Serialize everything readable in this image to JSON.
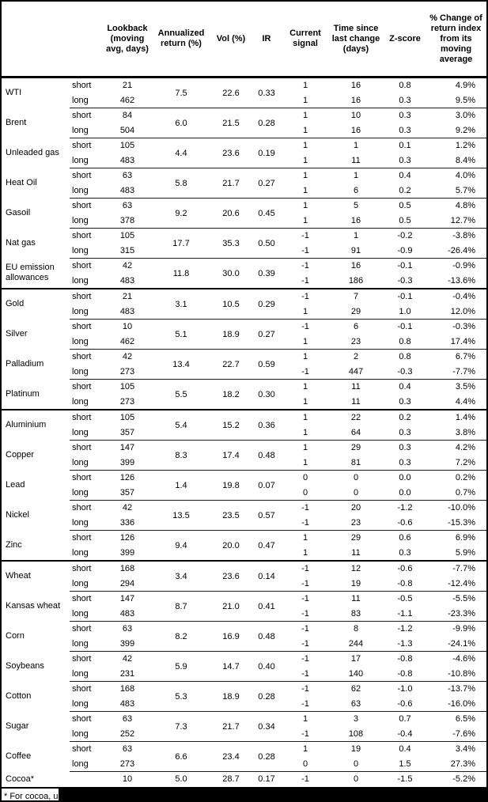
{
  "header": {
    "columns": [
      "",
      "",
      "Lookback (moving avg, days)",
      "Annualized return (%)",
      "Vol (%)",
      "IR",
      "Current signal",
      "Time since last change (days)",
      "Z-score",
      "% Change of return index from its moving average"
    ]
  },
  "groups": [
    {
      "commodities": [
        {
          "name": "WTI",
          "annualized_return": "7.5",
          "vol": "22.6",
          "ir": "0.33",
          "rows": [
            {
              "leg": "short",
              "lookback": "21",
              "signal": "1",
              "time_since": "16",
              "z_score": "0.8",
              "pct_change": "4.9%"
            },
            {
              "leg": "long",
              "lookback": "462",
              "signal": "1",
              "time_since": "16",
              "z_score": "0.3",
              "pct_change": "9.5%"
            }
          ]
        },
        {
          "name": "Brent",
          "annualized_return": "6.0",
          "vol": "21.5",
          "ir": "0.28",
          "rows": [
            {
              "leg": "short",
              "lookback": "84",
              "signal": "1",
              "time_since": "10",
              "z_score": "0.3",
              "pct_change": "3.0%"
            },
            {
              "leg": "long",
              "lookback": "504",
              "signal": "1",
              "time_since": "16",
              "z_score": "0.3",
              "pct_change": "9.2%"
            }
          ]
        },
        {
          "name": "Unleaded gas",
          "annualized_return": "4.4",
          "vol": "23.6",
          "ir": "0.19",
          "rows": [
            {
              "leg": "short",
              "lookback": "105",
              "signal": "1",
              "time_since": "1",
              "z_score": "0.1",
              "pct_change": "1.2%"
            },
            {
              "leg": "long",
              "lookback": "483",
              "signal": "1",
              "time_since": "11",
              "z_score": "0.3",
              "pct_change": "8.4%"
            }
          ]
        },
        {
          "name": "Heat Oil",
          "annualized_return": "5.8",
          "vol": "21.7",
          "ir": "0.27",
          "rows": [
            {
              "leg": "short",
              "lookback": "63",
              "signal": "1",
              "time_since": "1",
              "z_score": "0.4",
              "pct_change": "4.0%"
            },
            {
              "leg": "long",
              "lookback": "483",
              "signal": "1",
              "time_since": "6",
              "z_score": "0.2",
              "pct_change": "5.7%"
            }
          ]
        },
        {
          "name": "Gasoil",
          "annualized_return": "9.2",
          "vol": "20.6",
          "ir": "0.45",
          "rows": [
            {
              "leg": "short",
              "lookback": "63",
              "signal": "1",
              "time_since": "5",
              "z_score": "0.5",
              "pct_change": "4.8%"
            },
            {
              "leg": "long",
              "lookback": "378",
              "signal": "1",
              "time_since": "16",
              "z_score": "0.5",
              "pct_change": "12.7%"
            }
          ]
        },
        {
          "name": "Nat gas",
          "annualized_return": "17.7",
          "vol": "35.3",
          "ir": "0.50",
          "rows": [
            {
              "leg": "short",
              "lookback": "105",
              "signal": "-1",
              "time_since": "1",
              "z_score": "-0.2",
              "pct_change": "-3.8%"
            },
            {
              "leg": "long",
              "lookback": "315",
              "signal": "-1",
              "time_since": "91",
              "z_score": "-0.9",
              "pct_change": "-26.4%"
            }
          ]
        },
        {
          "name": "EU emission allowances",
          "annualized_return": "11.8",
          "vol": "30.0",
          "ir": "0.39",
          "rows": [
            {
              "leg": "short",
              "lookback": "42",
              "signal": "-1",
              "time_since": "16",
              "z_score": "-0.1",
              "pct_change": "-0.9%"
            },
            {
              "leg": "long",
              "lookback": "483",
              "signal": "-1",
              "time_since": "186",
              "z_score": "-0.3",
              "pct_change": "-13.6%"
            }
          ]
        }
      ]
    },
    {
      "commodities": [
        {
          "name": "Gold",
          "annualized_return": "3.1",
          "vol": "10.5",
          "ir": "0.29",
          "rows": [
            {
              "leg": "short",
              "lookback": "21",
              "signal": "-1",
              "time_since": "7",
              "z_score": "-0.1",
              "pct_change": "-0.4%"
            },
            {
              "leg": "long",
              "lookback": "483",
              "signal": "1",
              "time_since": "29",
              "z_score": "1.0",
              "pct_change": "12.0%"
            }
          ]
        },
        {
          "name": "Silver",
          "annualized_return": "5.1",
          "vol": "18.9",
          "ir": "0.27",
          "rows": [
            {
              "leg": "short",
              "lookback": "10",
              "signal": "-1",
              "time_since": "6",
              "z_score": "-0.1",
              "pct_change": "-0.3%"
            },
            {
              "leg": "long",
              "lookback": "462",
              "signal": "1",
              "time_since": "23",
              "z_score": "0.8",
              "pct_change": "17.4%"
            }
          ]
        },
        {
          "name": "Palladium",
          "annualized_return": "13.4",
          "vol": "22.7",
          "ir": "0.59",
          "rows": [
            {
              "leg": "short",
              "lookback": "42",
              "signal": "1",
              "time_since": "2",
              "z_score": "0.8",
              "pct_change": "6.7%"
            },
            {
              "leg": "long",
              "lookback": "273",
              "signal": "-1",
              "time_since": "447",
              "z_score": "-0.3",
              "pct_change": "-7.7%"
            }
          ]
        },
        {
          "name": "Platinum",
          "annualized_return": "5.5",
          "vol": "18.2",
          "ir": "0.30",
          "rows": [
            {
              "leg": "short",
              "lookback": "105",
              "signal": "1",
              "time_since": "11",
              "z_score": "0.4",
              "pct_change": "3.5%"
            },
            {
              "leg": "long",
              "lookback": "273",
              "signal": "1",
              "time_since": "11",
              "z_score": "0.3",
              "pct_change": "4.4%"
            }
          ]
        }
      ]
    },
    {
      "commodities": [
        {
          "name": "Aluminium",
          "annualized_return": "5.4",
          "vol": "15.2",
          "ir": "0.36",
          "rows": [
            {
              "leg": "short",
              "lookback": "105",
              "signal": "1",
              "time_since": "22",
              "z_score": "0.2",
              "pct_change": "1.4%"
            },
            {
              "leg": "long",
              "lookback": "357",
              "signal": "1",
              "time_since": "64",
              "z_score": "0.3",
              "pct_change": "3.8%"
            }
          ]
        },
        {
          "name": "Copper",
          "annualized_return": "8.3",
          "vol": "17.4",
          "ir": "0.48",
          "rows": [
            {
              "leg": "short",
              "lookback": "147",
              "signal": "1",
              "time_since": "29",
              "z_score": "0.3",
              "pct_change": "4.2%"
            },
            {
              "leg": "long",
              "lookback": "399",
              "signal": "1",
              "time_since": "81",
              "z_score": "0.3",
              "pct_change": "7.2%"
            }
          ]
        },
        {
          "name": "Lead",
          "annualized_return": "1.4",
          "vol": "19.8",
          "ir": "0.07",
          "rows": [
            {
              "leg": "short",
              "lookback": "126",
              "signal": "0",
              "time_since": "0",
              "z_score": "0.0",
              "pct_change": "0.2%"
            },
            {
              "leg": "long",
              "lookback": "357",
              "signal": "0",
              "time_since": "0",
              "z_score": "0.0",
              "pct_change": "0.7%"
            }
          ]
        },
        {
          "name": "Nickel",
          "annualized_return": "13.5",
          "vol": "23.5",
          "ir": "0.57",
          "rows": [
            {
              "leg": "short",
              "lookback": "42",
              "signal": "-1",
              "time_since": "20",
              "z_score": "-1.2",
              "pct_change": "-10.0%"
            },
            {
              "leg": "long",
              "lookback": "336",
              "signal": "-1",
              "time_since": "23",
              "z_score": "-0.6",
              "pct_change": "-15.3%"
            }
          ]
        },
        {
          "name": "Zinc",
          "annualized_return": "9.4",
          "vol": "20.0",
          "ir": "0.47",
          "rows": [
            {
              "leg": "short",
              "lookback": "126",
              "signal": "1",
              "time_since": "29",
              "z_score": "0.6",
              "pct_change": "6.9%"
            },
            {
              "leg": "long",
              "lookback": "399",
              "signal": "1",
              "time_since": "11",
              "z_score": "0.3",
              "pct_change": "5.9%"
            }
          ]
        }
      ]
    },
    {
      "commodities": [
        {
          "name": "Wheat",
          "annualized_return": "3.4",
          "vol": "23.6",
          "ir": "0.14",
          "rows": [
            {
              "leg": "short",
              "lookback": "168",
              "signal": "-1",
              "time_since": "12",
              "z_score": "-0.6",
              "pct_change": "-7.7%"
            },
            {
              "leg": "long",
              "lookback": "294",
              "signal": "-1",
              "time_since": "19",
              "z_score": "-0.8",
              "pct_change": "-12.4%"
            }
          ]
        },
        {
          "name": "Kansas wheat",
          "annualized_return": "8.7",
          "vol": "21.0",
          "ir": "0.41",
          "rows": [
            {
              "leg": "short",
              "lookback": "147",
              "signal": "-1",
              "time_since": "11",
              "z_score": "-0.5",
              "pct_change": "-5.5%"
            },
            {
              "leg": "long",
              "lookback": "483",
              "signal": "-1",
              "time_since": "83",
              "z_score": "-1.1",
              "pct_change": "-23.3%"
            }
          ]
        },
        {
          "name": "Corn",
          "annualized_return": "8.2",
          "vol": "16.9",
          "ir": "0.48",
          "rows": [
            {
              "leg": "short",
              "lookback": "63",
              "signal": "-1",
              "time_since": "8",
              "z_score": "-1.2",
              "pct_change": "-9.9%"
            },
            {
              "leg": "long",
              "lookback": "399",
              "signal": "-1",
              "time_since": "244",
              "z_score": "-1.3",
              "pct_change": "-24.1%"
            }
          ]
        },
        {
          "name": "Soybeans",
          "annualized_return": "5.9",
          "vol": "14.7",
          "ir": "0.40",
          "rows": [
            {
              "leg": "short",
              "lookback": "42",
              "signal": "-1",
              "time_since": "17",
              "z_score": "-0.8",
              "pct_change": "-4.6%"
            },
            {
              "leg": "long",
              "lookback": "231",
              "signal": "-1",
              "time_since": "140",
              "z_score": "-0.8",
              "pct_change": "-10.8%"
            }
          ]
        },
        {
          "name": "Cotton",
          "annualized_return": "5.3",
          "vol": "18.9",
          "ir": "0.28",
          "rows": [
            {
              "leg": "short",
              "lookback": "168",
              "signal": "-1",
              "time_since": "62",
              "z_score": "-1.0",
              "pct_change": "-13.7%"
            },
            {
              "leg": "long",
              "lookback": "483",
              "signal": "-1",
              "time_since": "63",
              "z_score": "-0.6",
              "pct_change": "-16.0%"
            }
          ]
        },
        {
          "name": "Sugar",
          "annualized_return": "7.3",
          "vol": "21.7",
          "ir": "0.34",
          "rows": [
            {
              "leg": "short",
              "lookback": "63",
              "signal": "1",
              "time_since": "3",
              "z_score": "0.7",
              "pct_change": "6.5%"
            },
            {
              "leg": "long",
              "lookback": "252",
              "signal": "-1",
              "time_since": "108",
              "z_score": "-0.4",
              "pct_change": "-7.6%"
            }
          ]
        },
        {
          "name": "Coffee",
          "annualized_return": "6.6",
          "vol": "23.4",
          "ir": "0.28",
          "rows": [
            {
              "leg": "short",
              "lookback": "63",
              "signal": "1",
              "time_since": "19",
              "z_score": "0.4",
              "pct_change": "3.4%"
            },
            {
              "leg": "long",
              "lookback": "273",
              "signal": "0",
              "time_since": "0",
              "z_score": "1.5",
              "pct_change": "27.3%"
            }
          ]
        },
        {
          "name": "Cocoa*",
          "annualized_return": "5.0",
          "vol": "28.7",
          "ir": "0.17",
          "rows": [
            {
              "leg": "",
              "lookback": "10",
              "signal": "-1",
              "time_since": "0",
              "z_score": "-1.5",
              "pct_change": "-5.2%"
            }
          ]
        }
      ]
    }
  ],
  "footnote": {
    "visible_text": "* For cocoa, uses c"
  }
}
